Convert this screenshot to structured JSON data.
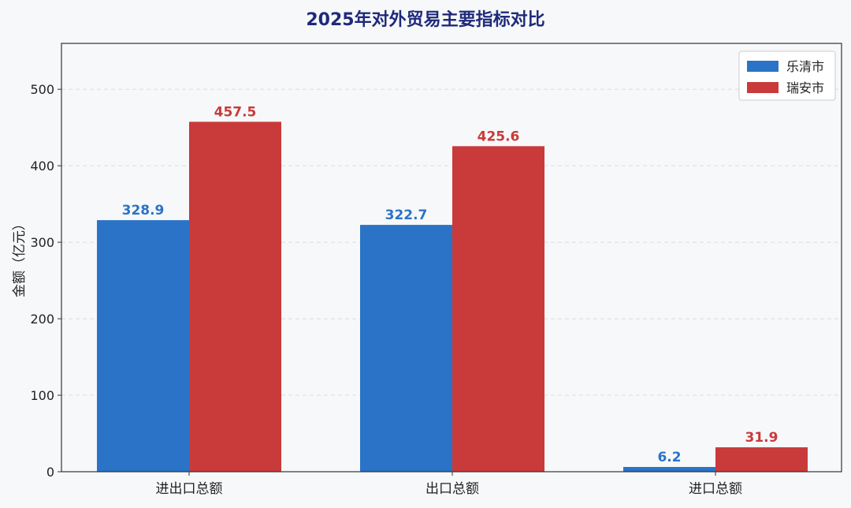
{
  "chart_data": {
    "type": "bar",
    "title": "2025年对外贸易主要指标对比",
    "xlabel": "",
    "ylabel": "金额（亿元）",
    "categories": [
      "进出口总额",
      "出口总额",
      "进口总额"
    ],
    "series": [
      {
        "name": "乐清市",
        "values": [
          328.9,
          322.7,
          6.2
        ],
        "color": "#2b73c6"
      },
      {
        "name": "瑞安市",
        "values": [
          457.5,
          425.6,
          31.9
        ],
        "color": "#c93a3a"
      }
    ],
    "ylim": [
      0,
      560
    ],
    "yticks": [
      0,
      100,
      200,
      300,
      400,
      500
    ],
    "grid": true,
    "legend_position": "top-right",
    "colors": {
      "title": "#1f2a7a",
      "axis": "#333333",
      "grid": "#d9dbe0",
      "plot_background": "#f7f8fa"
    }
  }
}
